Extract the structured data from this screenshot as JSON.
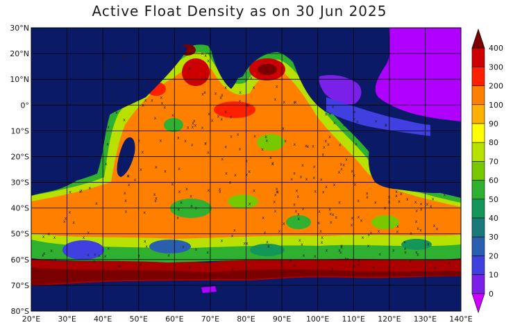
{
  "title": "Active Float Density as on 30 Jun 2025",
  "map": {
    "lon_range": [
      20,
      140
    ],
    "lat_range": [
      -80,
      30
    ],
    "lat_labels": [
      "30°N",
      "20°N",
      "10°N",
      "0°",
      "10°S",
      "20°S",
      "30°S",
      "40°S",
      "50°S",
      "60°S",
      "70°S",
      "80°S"
    ],
    "lon_labels": [
      "20°E",
      "30°E",
      "40°E",
      "50°E",
      "60°E",
      "70°E",
      "80°E",
      "90°E",
      "100°E",
      "110°E",
      "120°E",
      "130°E",
      "140°E"
    ]
  },
  "colorbar": {
    "labels": [
      "400",
      "300",
      "200",
      "100",
      "90",
      "80",
      "70",
      "60",
      "50",
      "40",
      "30",
      "20",
      "10",
      "0"
    ],
    "colors": [
      "#7a0000",
      "#cc0000",
      "#ff2000",
      "#ff7f00",
      "#ffb000",
      "#ffff00",
      "#b8e000",
      "#78c800",
      "#30b030",
      "#14955a",
      "#1a7a7a",
      "#2a5fb0",
      "#4040e0",
      "#7a20e8",
      "#cc00ff"
    ]
  },
  "colors": {
    "ocean_background": "#0a1a66",
    "land": "#b000ff",
    "grid": "#000000"
  }
}
